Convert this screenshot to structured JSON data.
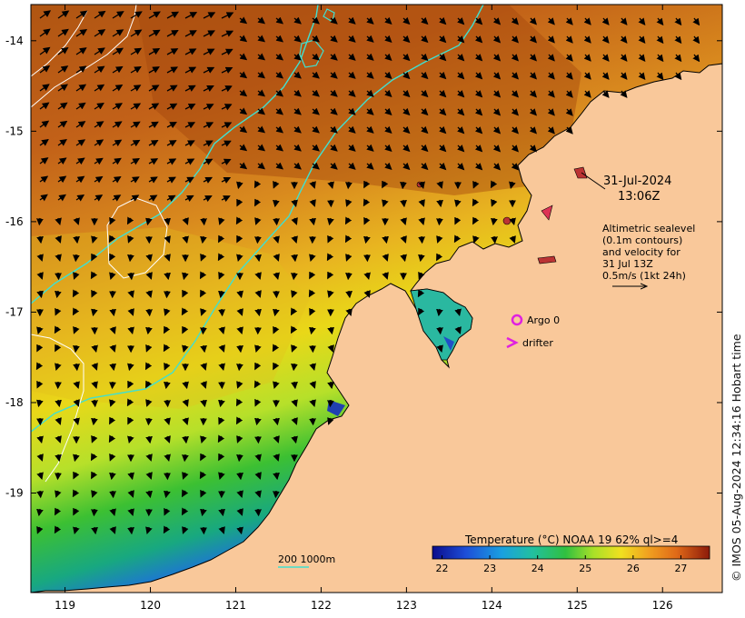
{
  "map": {
    "lat_ticks": [
      "-14",
      "-15",
      "-16",
      "-17",
      "-18",
      "-19"
    ],
    "lon_ticks": [
      "119",
      "120",
      "121",
      "122",
      "123",
      "124",
      "125",
      "126"
    ],
    "lat_range": [
      -20.1,
      -13.6
    ],
    "lon_range": [
      118.6,
      126.7
    ]
  },
  "annotations": {
    "date": "31-Jul-2024",
    "time": "13:06Z",
    "alt_line1": "Altimetric sealevel",
    "alt_line2": "(0.1m contours)",
    "alt_line3": "and velocity for",
    "alt_line4": "31 Jul 13Z",
    "alt_line5": "0.5m/s (1kt 24h)",
    "argo_label": "Argo 0",
    "drifter_label": "drifter",
    "scale_label": "200 1000m"
  },
  "colorbar": {
    "title": "Temperature (°C) NOAA 19 62% ql>=4",
    "ticks": [
      "22",
      "23",
      "24",
      "25",
      "26",
      "27"
    ],
    "range": [
      21.8,
      27.6
    ]
  },
  "side_credit": "© IMOS 05-Aug-2024 12:34:16 Hobart time",
  "colors": {
    "land": "#f9c89a",
    "warm": "#c4621a",
    "isobath": "#40e0d0",
    "argo": "#e020e0",
    "arrow": "#000000"
  }
}
